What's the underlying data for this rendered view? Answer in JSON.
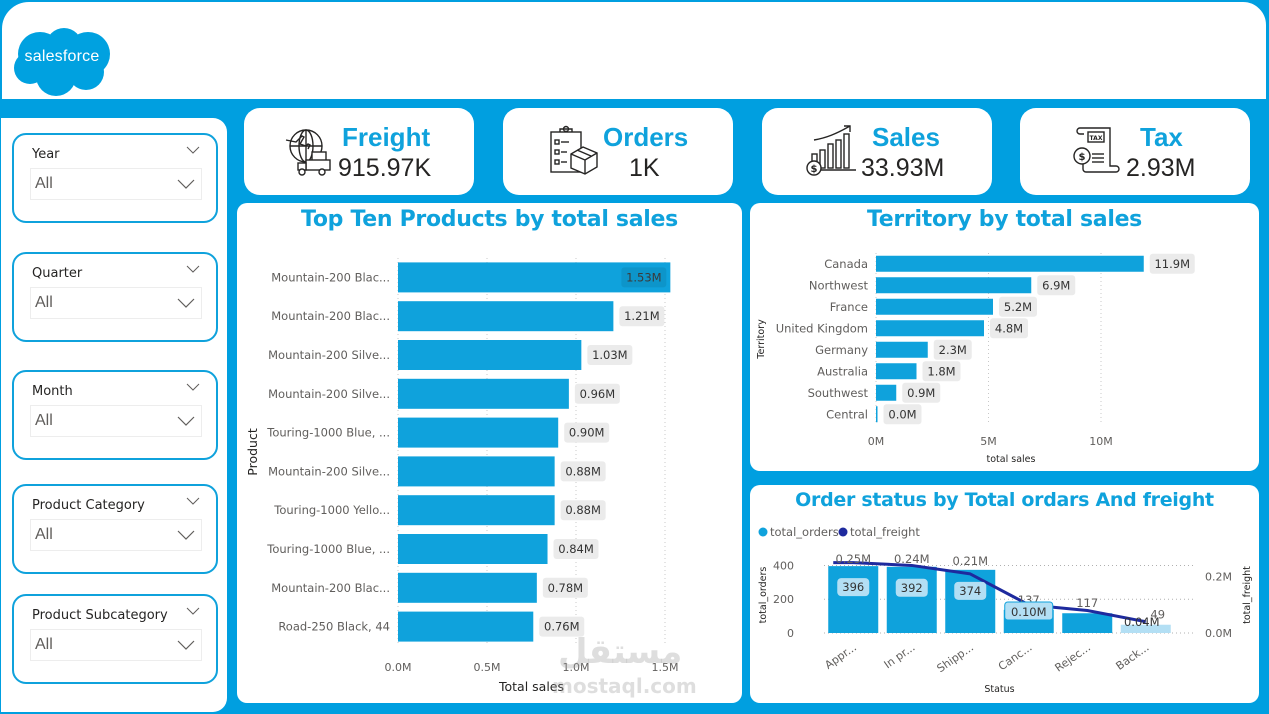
{
  "brand": {
    "logo_text": "salesforce",
    "primary_color": "#009fe0",
    "accent_color": "#0fa2dc",
    "line_color": "#1e2a9e"
  },
  "slicers": [
    {
      "label": "Year",
      "value": "All"
    },
    {
      "label": "Quarter",
      "value": "All"
    },
    {
      "label": "Month",
      "value": "All"
    },
    {
      "label": "Product Category",
      "value": "All"
    },
    {
      "label": "Product Subcategory",
      "value": "All"
    }
  ],
  "kpis": [
    {
      "label": "Freight",
      "value": "915.97K",
      "icon": "freight-globe-truck-icon"
    },
    {
      "label": "Orders",
      "value": "1K",
      "icon": "clipboard-box-icon"
    },
    {
      "label": "Sales",
      "value": "33.93M",
      "icon": "sales-growth-chart-icon"
    },
    {
      "label": "Tax",
      "value": "2.93M",
      "icon": "tax-document-icon"
    }
  ],
  "chart_data": [
    {
      "type": "bar",
      "orientation": "horizontal",
      "title": "Top Ten Products by total sales",
      "xlabel": "Total sales",
      "ylabel": "Product",
      "categories": [
        "Mountain-200 Blac...",
        "Mountain-200 Blac...",
        "Mountain-200 Silve...",
        "Mountain-200 Silve...",
        "Touring-1000 Blue, ...",
        "Mountain-200 Silve...",
        "Touring-1000 Yello...",
        "Touring-1000 Blue, ...",
        "Mountain-200 Blac...",
        "Road-250 Black, 44"
      ],
      "values": [
        1.53,
        1.21,
        1.03,
        0.96,
        0.9,
        0.88,
        0.88,
        0.84,
        0.78,
        0.76
      ],
      "data_labels": [
        "1.53M",
        "1.21M",
        "1.03M",
        "0.96M",
        "0.90M",
        "0.88M",
        "0.88M",
        "0.84M",
        "0.78M",
        "0.76M"
      ],
      "units": "M",
      "xlim": [
        0,
        1.5
      ],
      "xticks": [
        "0.0M",
        "0.5M",
        "1.0M",
        "1.5M"
      ],
      "xtick_values": [
        0,
        0.5,
        1.0,
        1.5
      ],
      "grid": true
    },
    {
      "type": "bar",
      "orientation": "horizontal",
      "title": "Territory by total sales",
      "xlabel": "total sales",
      "ylabel": "Territory",
      "categories": [
        "Canada",
        "Northwest",
        "France",
        "United Kingdom",
        "Germany",
        "Australia",
        "Southwest",
        "Central"
      ],
      "values": [
        11.9,
        6.9,
        5.2,
        4.8,
        2.3,
        1.8,
        0.9,
        0.03
      ],
      "data_labels": [
        "11.9M",
        "6.9M",
        "5.2M",
        "4.8M",
        "2.3M",
        "1.8M",
        "0.9M",
        "0.0M"
      ],
      "units": "M",
      "xlim": [
        0,
        12
      ],
      "xticks": [
        "0M",
        "5M",
        "10M"
      ],
      "xtick_values": [
        0,
        5,
        10
      ],
      "grid": true
    },
    {
      "type": "bar+line",
      "title": "Order status by Total ordars And freight",
      "xlabel": "Status",
      "ylabel": "total_orders",
      "y2label": "total_freight",
      "legend": {
        "position": "top-left",
        "entries": [
          {
            "name": "total_orders",
            "color": "#0fa2dc"
          },
          {
            "name": "total_freight",
            "color": "#1e2a9e"
          }
        ]
      },
      "categories": [
        "Appr...",
        "In pr...",
        "Shipp...",
        "Canc...",
        "Rejec...",
        "Back..."
      ],
      "series": [
        {
          "name": "total_orders",
          "type": "bar",
          "values": [
            396,
            392,
            374,
            137,
            117,
            49
          ],
          "data_labels": [
            "396",
            "392",
            "374",
            "137",
            "117",
            "49"
          ]
        },
        {
          "name": "total_freight",
          "type": "line",
          "values": [
            0.25,
            0.24,
            0.21,
            0.1,
            0.08,
            0.04
          ],
          "data_labels": [
            "0.25M",
            "0.24M",
            "0.21M",
            "0.10M",
            "",
            "0.04M"
          ],
          "units": "M"
        }
      ],
      "ylim": [
        0,
        450
      ],
      "yticks": [
        "0",
        "200",
        "400"
      ],
      "ytick_values": [
        0,
        200,
        400
      ],
      "y2lim": [
        0,
        0.27
      ],
      "y2ticks": [
        "0.0M",
        "0.2M"
      ],
      "y2tick_values": [
        0,
        0.2
      ],
      "grid": true
    }
  ],
  "watermark": {
    "arabic": "مستقل",
    "latin": "mostaql.com"
  }
}
